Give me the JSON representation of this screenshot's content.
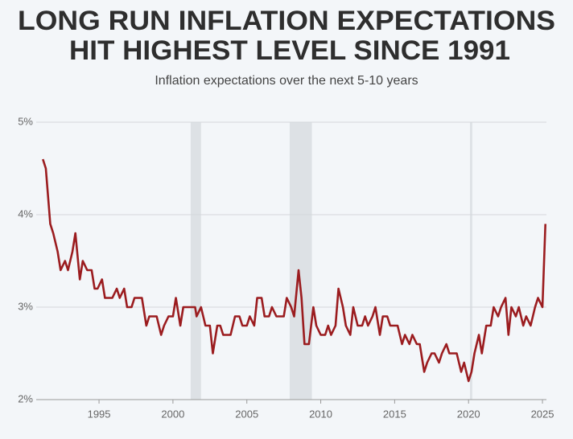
{
  "chart_data": {
    "type": "line",
    "title": [
      "LONG RUN INFLATION EXPECTATIONS",
      "HIT HIGHEST LEVEL SINCE 1991"
    ],
    "subtitle": "Inflation expectations over the next 5-10 years",
    "x": [
      1991.2,
      1991.4,
      1991.7,
      1991.9,
      1992.2,
      1992.4,
      1992.7,
      1992.9,
      1993.2,
      1993.4,
      1993.7,
      1993.9,
      1994.2,
      1994.5,
      1994.7,
      1994.9,
      1995.2,
      1995.4,
      1995.9,
      1996.2,
      1996.4,
      1996.7,
      1996.9,
      1997.2,
      1997.4,
      1997.9,
      1998.2,
      1998.4,
      1998.9,
      1999.2,
      1999.4,
      1999.7,
      2000.0,
      2000.2,
      2000.5,
      2000.7,
      2001.5,
      2001.6,
      2001.9,
      2002.2,
      2002.5,
      2002.7,
      2003.0,
      2003.2,
      2003.4,
      2003.9,
      2004.2,
      2004.5,
      2004.7,
      2005.0,
      2005.2,
      2005.5,
      2005.7,
      2006.0,
      2006.2,
      2006.5,
      2006.7,
      2007.0,
      2007.5,
      2007.7,
      2008.0,
      2008.2,
      2008.5,
      2008.7,
      2008.9,
      2009.2,
      2009.5,
      2009.7,
      2010.0,
      2010.3,
      2010.5,
      2010.7,
      2011.0,
      2011.2,
      2011.5,
      2011.7,
      2012.0,
      2012.2,
      2012.5,
      2012.8,
      2013.0,
      2013.2,
      2013.5,
      2013.7,
      2014.0,
      2014.2,
      2014.5,
      2014.7,
      2015.2,
      2015.5,
      2015.7,
      2016.0,
      2016.2,
      2016.5,
      2016.7,
      2017.0,
      2017.2,
      2017.5,
      2017.7,
      2018.0,
      2018.2,
      2018.5,
      2018.7,
      2019.2,
      2019.5,
      2019.7,
      2020.0,
      2020.2,
      2020.4,
      2020.7,
      2020.9,
      2021.2,
      2021.5,
      2021.7,
      2022.0,
      2022.2,
      2022.5,
      2022.7,
      2022.9,
      2023.2,
      2023.4,
      2023.7,
      2023.9,
      2024.2,
      2024.5,
      2024.7,
      2025.0,
      2025.2
    ],
    "series": [
      {
        "color": "#9b1c1f",
        "values": [
          4.6,
          4.5,
          3.9,
          3.8,
          3.6,
          3.4,
          3.5,
          3.4,
          3.6,
          3.8,
          3.3,
          3.5,
          3.4,
          3.4,
          3.2,
          3.2,
          3.3,
          3.1,
          3.1,
          3.2,
          3.1,
          3.2,
          3.0,
          3.0,
          3.1,
          3.1,
          2.8,
          2.9,
          2.9,
          2.7,
          2.8,
          2.9,
          2.9,
          3.1,
          2.8,
          3.0,
          3.0,
          2.9,
          3.0,
          2.8,
          2.8,
          2.5,
          2.8,
          2.8,
          2.7,
          2.7,
          2.9,
          2.9,
          2.8,
          2.8,
          2.9,
          2.8,
          3.1,
          3.1,
          2.9,
          2.9,
          3.0,
          2.9,
          2.9,
          3.1,
          3.0,
          2.9,
          3.4,
          3.1,
          2.6,
          2.6,
          3.0,
          2.8,
          2.7,
          2.7,
          2.8,
          2.7,
          2.8,
          3.2,
          3.0,
          2.8,
          2.7,
          3.0,
          2.8,
          2.8,
          2.9,
          2.8,
          2.9,
          3.0,
          2.7,
          2.9,
          2.9,
          2.8,
          2.8,
          2.6,
          2.7,
          2.6,
          2.7,
          2.6,
          2.6,
          2.3,
          2.4,
          2.5,
          2.5,
          2.4,
          2.5,
          2.6,
          2.5,
          2.5,
          2.3,
          2.4,
          2.2,
          2.3,
          2.5,
          2.7,
          2.5,
          2.8,
          2.8,
          3.0,
          2.9,
          3.0,
          3.1,
          2.7,
          3.0,
          2.9,
          3.0,
          2.8,
          2.9,
          2.8,
          3.0,
          3.1,
          3.0,
          3.9
        ]
      }
    ],
    "xlim": [
      1990.75,
      2025.27
    ],
    "xticks": [
      1995,
      2000,
      2005,
      2010,
      2015,
      2020,
      2025
    ],
    "ylim": [
      2,
      5
    ],
    "yticks": [
      {
        "value": 2,
        "label": "2%"
      },
      {
        "value": 3,
        "label": "3%"
      },
      {
        "value": 4,
        "label": "4%"
      },
      {
        "value": 5,
        "label": "5%"
      }
    ],
    "grid": true,
    "recessions": [
      [
        2001.2,
        2001.9
      ],
      [
        2007.9,
        2009.4
      ],
      [
        2020.1,
        2020.25
      ]
    ]
  }
}
